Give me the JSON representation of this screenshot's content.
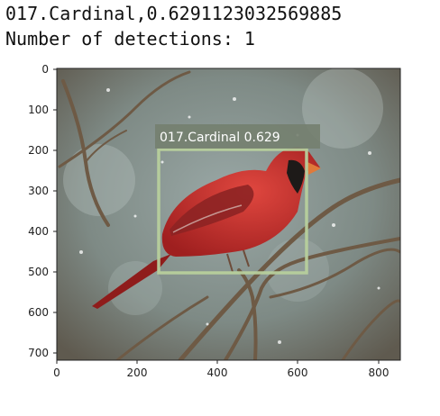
{
  "output": {
    "line1": "017.Cardinal,0.6291123032569885",
    "line2": "Number of detections: 1"
  },
  "plot": {
    "x_ticks": [
      "0",
      "200",
      "400",
      "600",
      "800"
    ],
    "y_ticks": [
      "0",
      "100",
      "200",
      "300",
      "400",
      "500",
      "600",
      "700"
    ]
  },
  "detection": {
    "label": "017.Cardinal 0.629",
    "box_color": "#b7cf9c",
    "class": "017.Cardinal",
    "score": 0.629
  },
  "image_description_colors": {
    "background": "#7e8a85",
    "bird": "#c8312e"
  }
}
